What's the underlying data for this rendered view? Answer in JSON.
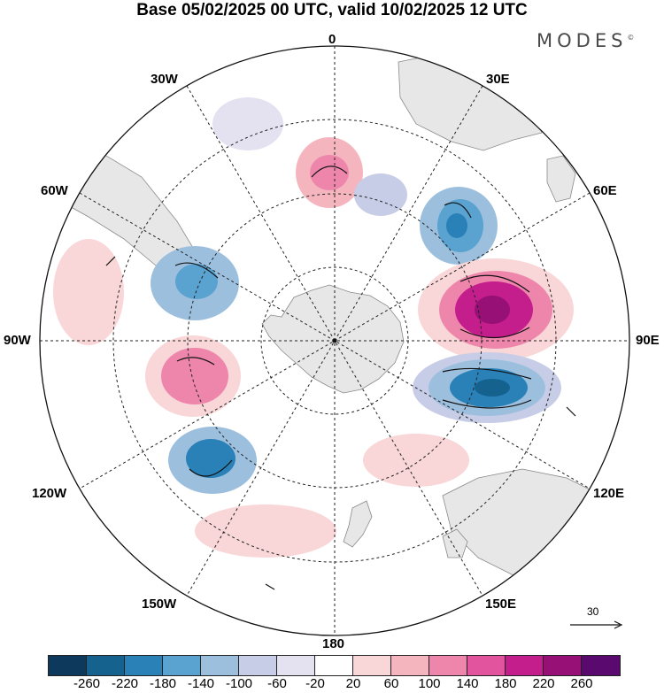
{
  "title": "Base 05/02/2025 00 UTC, valid 10/02/2025 12 UTC",
  "brand": {
    "name": "MODES",
    "mark": "©"
  },
  "map": {
    "projection": "south polar stereographic",
    "longitude_labels": {
      "top": "0",
      "bottom": "180",
      "left": "90W",
      "right": "90E",
      "upper_left_1": "30W",
      "upper_left_2": "60W",
      "upper_right_1": "30E",
      "upper_right_2": "60E",
      "lower_left_1": "120W",
      "lower_left_2": "150W",
      "lower_right_1": "120E",
      "lower_right_2": "150E"
    },
    "wind_scale": {
      "value": "30"
    }
  },
  "colorbar": {
    "colors": [
      "#0d3a5c",
      "#15628f",
      "#2a81b8",
      "#5aa2cf",
      "#9dbfde",
      "#c7cde6",
      "#e4e2f1",
      "#ffffff",
      "#f9d6d8",
      "#f5b5bf",
      "#ee86ab",
      "#e3549e",
      "#c41d8c",
      "#961075",
      "#5a0a6e"
    ],
    "ticks": [
      "-260",
      "-220",
      "-180",
      "-140",
      "-100",
      "-60",
      "-20",
      "20",
      "60",
      "100",
      "140",
      "180",
      "220",
      "260"
    ]
  }
}
